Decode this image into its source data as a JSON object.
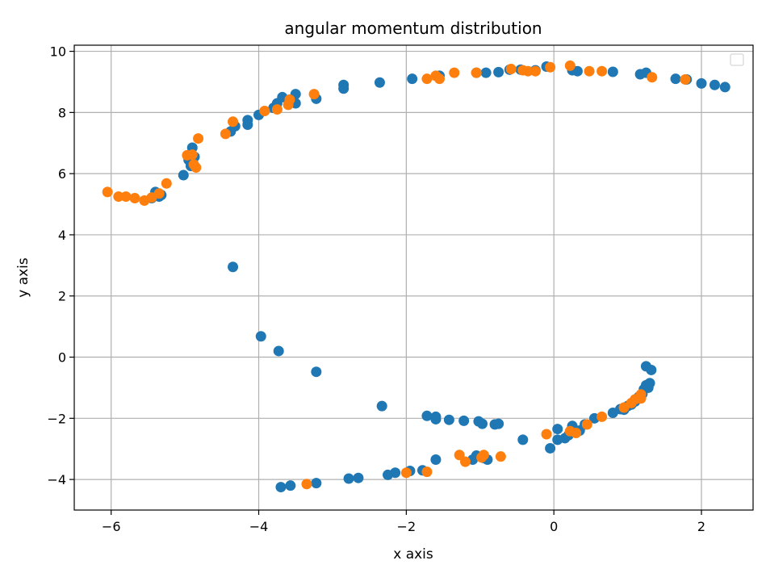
{
  "chart_data": {
    "type": "scatter",
    "title": "angular momentum distribution",
    "xlabel": "x axis",
    "ylabel": "y axis",
    "xlim": [
      -6.5,
      2.7
    ],
    "ylim": [
      -5,
      10.2
    ],
    "xticks": [
      -6,
      -4,
      -2,
      0,
      2
    ],
    "yticks": [
      -4,
      -2,
      0,
      2,
      4,
      6,
      8,
      10
    ],
    "xtick_labels": [
      "−6",
      "−4",
      "−2",
      "0",
      "2"
    ],
    "ytick_labels": [
      "−4",
      "−2",
      "0",
      "2",
      "4",
      "6",
      "8",
      "10"
    ],
    "grid": true,
    "legend": "top-right (empty)",
    "series": [
      {
        "color": "#1f77b4",
        "points": [
          [
            -5.45,
            5.2
          ],
          [
            -5.4,
            5.4
          ],
          [
            -5.35,
            5.25
          ],
          [
            -5.32,
            5.3
          ],
          [
            -5.02,
            5.95
          ],
          [
            -4.95,
            6.45
          ],
          [
            -4.9,
            6.85
          ],
          [
            -4.92,
            6.25
          ],
          [
            -4.87,
            6.55
          ],
          [
            -4.38,
            7.38
          ],
          [
            -4.32,
            7.55
          ],
          [
            -4.15,
            7.75
          ],
          [
            -4.15,
            7.6
          ],
          [
            -4.0,
            7.92
          ],
          [
            -3.8,
            8.15
          ],
          [
            -3.75,
            8.3
          ],
          [
            -3.68,
            8.5
          ],
          [
            -3.5,
            8.6
          ],
          [
            -3.5,
            8.3
          ],
          [
            -3.58,
            8.42
          ],
          [
            -3.22,
            8.45
          ],
          [
            -2.85,
            8.9
          ],
          [
            -2.85,
            8.78
          ],
          [
            -2.36,
            8.98
          ],
          [
            -1.92,
            9.1
          ],
          [
            -1.55,
            9.2
          ],
          [
            -1.05,
            9.3
          ],
          [
            -0.92,
            9.3
          ],
          [
            -0.75,
            9.32
          ],
          [
            -0.6,
            9.4
          ],
          [
            -0.45,
            9.4
          ],
          [
            -0.25,
            9.38
          ],
          [
            -0.1,
            9.5
          ],
          [
            0.25,
            9.38
          ],
          [
            0.32,
            9.35
          ],
          [
            0.8,
            9.33
          ],
          [
            1.17,
            9.25
          ],
          [
            1.25,
            9.3
          ],
          [
            1.65,
            9.1
          ],
          [
            1.8,
            9.08
          ],
          [
            2.0,
            8.95
          ],
          [
            2.18,
            8.9
          ],
          [
            2.32,
            8.83
          ],
          [
            -4.35,
            2.95
          ],
          [
            -3.97,
            0.68
          ],
          [
            -3.73,
            0.2
          ],
          [
            -3.22,
            -0.48
          ],
          [
            -2.33,
            -1.6
          ],
          [
            -1.72,
            -1.92
          ],
          [
            -1.6,
            -1.95
          ],
          [
            -1.6,
            -2.03
          ],
          [
            -1.42,
            -2.05
          ],
          [
            -1.22,
            -2.08
          ],
          [
            -1.02,
            -2.1
          ],
          [
            -0.97,
            -2.18
          ],
          [
            -0.8,
            -2.2
          ],
          [
            -0.75,
            -2.18
          ],
          [
            -0.42,
            -2.7
          ],
          [
            -0.05,
            -2.98
          ],
          [
            0.05,
            -2.35
          ],
          [
            0.05,
            -2.7
          ],
          [
            0.15,
            -2.65
          ],
          [
            0.2,
            -2.55
          ],
          [
            0.25,
            -2.25
          ],
          [
            0.35,
            -2.4
          ],
          [
            0.42,
            -2.2
          ],
          [
            0.55,
            -2.0
          ],
          [
            0.8,
            -1.82
          ],
          [
            0.9,
            -1.7
          ],
          [
            0.95,
            -1.72
          ],
          [
            1.0,
            -1.6
          ],
          [
            1.05,
            -1.55
          ],
          [
            1.1,
            -1.45
          ],
          [
            1.15,
            -1.3
          ],
          [
            1.2,
            -1.2
          ],
          [
            1.22,
            -1.05
          ],
          [
            1.25,
            -0.92
          ],
          [
            1.28,
            -1.0
          ],
          [
            1.3,
            -0.85
          ],
          [
            1.25,
            -0.3
          ],
          [
            1.32,
            -0.42
          ],
          [
            -1.1,
            -3.35
          ],
          [
            -1.05,
            -3.22
          ],
          [
            -0.95,
            -3.3
          ],
          [
            -0.9,
            -3.35
          ],
          [
            -1.6,
            -3.35
          ],
          [
            -1.78,
            -3.7
          ],
          [
            -1.95,
            -3.72
          ],
          [
            -2.15,
            -3.78
          ],
          [
            -2.25,
            -3.85
          ],
          [
            -2.65,
            -3.95
          ],
          [
            -2.78,
            -3.97
          ],
          [
            -3.22,
            -4.12
          ],
          [
            -3.57,
            -4.2
          ],
          [
            -3.7,
            -4.25
          ]
        ]
      },
      {
        "color": "#ff7f0e",
        "points": [
          [
            -6.05,
            5.4
          ],
          [
            -5.9,
            5.25
          ],
          [
            -5.8,
            5.25
          ],
          [
            -5.68,
            5.2
          ],
          [
            -5.55,
            5.12
          ],
          [
            -5.45,
            5.22
          ],
          [
            -5.35,
            5.35
          ],
          [
            -5.25,
            5.68
          ],
          [
            -4.97,
            6.6
          ],
          [
            -4.9,
            6.62
          ],
          [
            -4.88,
            6.3
          ],
          [
            -4.85,
            6.2
          ],
          [
            -4.82,
            7.15
          ],
          [
            -4.45,
            7.3
          ],
          [
            -4.35,
            7.7
          ],
          [
            -3.92,
            8.05
          ],
          [
            -3.75,
            8.1
          ],
          [
            -3.6,
            8.25
          ],
          [
            -3.58,
            8.42
          ],
          [
            -3.25,
            8.6
          ],
          [
            -1.72,
            9.1
          ],
          [
            -1.6,
            9.2
          ],
          [
            -1.55,
            9.1
          ],
          [
            -1.35,
            9.3
          ],
          [
            -1.05,
            9.3
          ],
          [
            -0.58,
            9.42
          ],
          [
            -0.42,
            9.38
          ],
          [
            -0.35,
            9.35
          ],
          [
            -0.25,
            9.35
          ],
          [
            -0.05,
            9.48
          ],
          [
            0.22,
            9.53
          ],
          [
            0.48,
            9.35
          ],
          [
            0.65,
            9.35
          ],
          [
            1.33,
            9.15
          ],
          [
            1.78,
            9.08
          ],
          [
            -3.35,
            -4.15
          ],
          [
            -2.0,
            -3.78
          ],
          [
            -1.72,
            -3.75
          ],
          [
            -1.28,
            -3.2
          ],
          [
            -1.2,
            -3.42
          ],
          [
            -0.98,
            -3.28
          ],
          [
            -0.95,
            -3.2
          ],
          [
            -0.72,
            -3.25
          ],
          [
            -0.1,
            -2.52
          ],
          [
            0.22,
            -2.42
          ],
          [
            0.3,
            -2.48
          ],
          [
            0.45,
            -2.2
          ],
          [
            0.65,
            -1.95
          ],
          [
            0.95,
            -1.65
          ],
          [
            1.05,
            -1.5
          ],
          [
            1.1,
            -1.38
          ],
          [
            1.18,
            -1.35
          ],
          [
            1.18,
            -1.22
          ]
        ]
      }
    ]
  }
}
